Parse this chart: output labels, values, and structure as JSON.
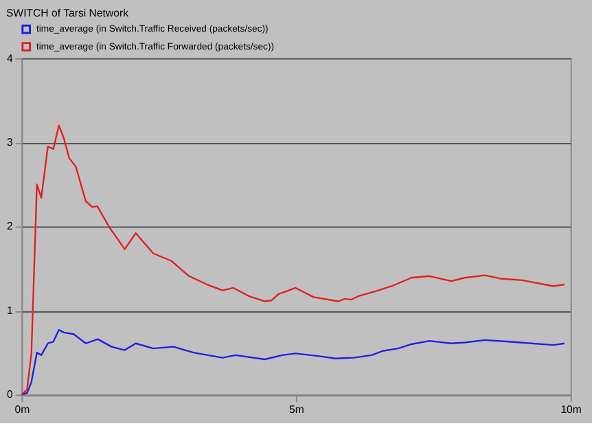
{
  "chart_data": {
    "type": "line",
    "title": "SWITCH of Tarsi Network",
    "xlim": [
      0,
      10
    ],
    "xticks": [
      {
        "value": 0,
        "label": "0m"
      },
      {
        "value": 5,
        "label": "5m"
      },
      {
        "value": 10,
        "label": "10m"
      }
    ],
    "ylim": [
      0,
      4
    ],
    "yticks": [
      0,
      1,
      2,
      3,
      4
    ],
    "grid": "y",
    "legend": "top left",
    "line_style": "solid",
    "marker": "none",
    "series": [
      {
        "name": "time_average (in Switch.Traffic Received (packets/sec))",
        "color": "#2020e0",
        "x": [
          0,
          0.1,
          0.18,
          0.28,
          0.36,
          0.48,
          0.58,
          0.68,
          0.77,
          0.95,
          1.17,
          1.39,
          1.64,
          1.88,
          2.08,
          2.4,
          2.77,
          3.13,
          3.66,
          3.9,
          4.43,
          4.75,
          4.99,
          5.4,
          5.72,
          6.05,
          6.38,
          6.58,
          6.86,
          7.1,
          7.43,
          7.83,
          8.07,
          8.44,
          8.88,
          9.29,
          9.69,
          9.89
        ],
        "values": [
          0,
          0.02,
          0.15,
          0.5,
          0.47,
          0.61,
          0.63,
          0.77,
          0.74,
          0.72,
          0.61,
          0.66,
          0.57,
          0.53,
          0.61,
          0.55,
          0.57,
          0.5,
          0.44,
          0.47,
          0.42,
          0.47,
          0.49,
          0.46,
          0.43,
          0.44,
          0.47,
          0.52,
          0.55,
          0.6,
          0.64,
          0.61,
          0.62,
          0.65,
          0.63,
          0.61,
          0.59,
          0.61
        ]
      },
      {
        "name": "time_average (in Switch.Traffic Forwarded (packets/sec))",
        "color": "#e02020",
        "x": [
          0,
          0.1,
          0.18,
          0.28,
          0.36,
          0.48,
          0.58,
          0.68,
          0.77,
          0.87,
          0.99,
          1.17,
          1.29,
          1.38,
          1.6,
          1.88,
          2.08,
          2.4,
          2.73,
          3.05,
          3.38,
          3.66,
          3.86,
          4.15,
          4.43,
          4.55,
          4.69,
          4.83,
          4.99,
          5.32,
          5.77,
          5.89,
          6.01,
          6.13,
          6.45,
          6.78,
          7.1,
          7.43,
          7.83,
          8.07,
          8.44,
          8.72,
          9.13,
          9.69,
          9.89
        ],
        "values": [
          0,
          0.06,
          0.49,
          2.5,
          2.34,
          2.95,
          2.92,
          3.2,
          3.05,
          2.81,
          2.71,
          2.3,
          2.23,
          2.24,
          1.99,
          1.73,
          1.92,
          1.68,
          1.59,
          1.41,
          1.31,
          1.24,
          1.27,
          1.17,
          1.11,
          1.12,
          1.2,
          1.23,
          1.27,
          1.16,
          1.11,
          1.14,
          1.13,
          1.17,
          1.23,
          1.3,
          1.39,
          1.41,
          1.35,
          1.39,
          1.42,
          1.38,
          1.36,
          1.29,
          1.31
        ]
      }
    ]
  }
}
